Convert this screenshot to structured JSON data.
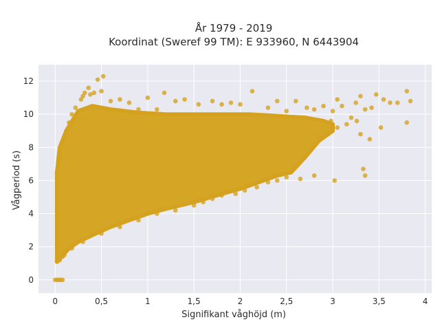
{
  "chart_data": {
    "type": "scatter",
    "title_lines": [
      "År 1979 - 2019",
      "Koordinat (Sweref 99 TM): E 933960, N 6443904"
    ],
    "xlabel": "Signifikant våghöjd (m)",
    "ylabel": "Vågperiod (s)",
    "xlim": [
      -0.18,
      4.07
    ],
    "ylim": [
      -0.8,
      13.0
    ],
    "x_ticks": [
      0,
      0.5,
      1,
      1.5,
      2,
      2.5,
      3,
      3.5,
      4
    ],
    "x_tick_labels": [
      "0",
      "0,5",
      "1",
      "1,5",
      "2",
      "2,5",
      "3",
      "3,5",
      "4"
    ],
    "y_ticks": [
      0,
      2,
      4,
      6,
      8,
      10,
      12
    ],
    "y_tick_labels": [
      "0",
      "2",
      "4",
      "6",
      "8",
      "10",
      "12"
    ],
    "grid": true,
    "background_color": "#e9e9f2",
    "marker_color": "#d4a21f",
    "description_of_dense_region": "tens of thousands of hourly observations forming a dense band",
    "points": [
      [
        0.0,
        0.0
      ],
      [
        0.02,
        0.0
      ],
      [
        0.04,
        0.0
      ],
      [
        0.06,
        0.0
      ],
      [
        0.08,
        0.0
      ],
      [
        0.02,
        1.1
      ],
      [
        0.05,
        1.2
      ],
      [
        0.08,
        1.4
      ],
      [
        0.1,
        1.5
      ],
      [
        0.02,
        6.5
      ],
      [
        0.04,
        7.3
      ],
      [
        0.05,
        8.0
      ],
      [
        0.1,
        8.6
      ],
      [
        0.12,
        9.0
      ],
      [
        0.15,
        9.5
      ],
      [
        0.18,
        10.0
      ],
      [
        0.22,
        10.4
      ],
      [
        0.28,
        10.9
      ],
      [
        0.3,
        11.1
      ],
      [
        0.32,
        11.3
      ],
      [
        0.36,
        11.6
      ],
      [
        0.38,
        11.2
      ],
      [
        0.42,
        11.3
      ],
      [
        0.46,
        12.1
      ],
      [
        0.52,
        12.3
      ],
      [
        0.5,
        11.4
      ],
      [
        0.6,
        10.8
      ],
      [
        0.7,
        10.9
      ],
      [
        0.8,
        10.7
      ],
      [
        0.9,
        10.3
      ],
      [
        1.0,
        11.0
      ],
      [
        1.1,
        10.3
      ],
      [
        1.18,
        11.3
      ],
      [
        1.3,
        10.8
      ],
      [
        1.4,
        10.9
      ],
      [
        1.55,
        10.6
      ],
      [
        1.7,
        10.8
      ],
      [
        1.8,
        10.6
      ],
      [
        1.9,
        10.7
      ],
      [
        2.0,
        10.6
      ],
      [
        2.13,
        11.4
      ],
      [
        2.3,
        10.4
      ],
      [
        2.4,
        10.8
      ],
      [
        2.5,
        10.2
      ],
      [
        2.6,
        10.8
      ],
      [
        2.72,
        10.4
      ],
      [
        2.8,
        10.3
      ],
      [
        2.9,
        10.5
      ],
      [
        3.0,
        10.2
      ],
      [
        3.05,
        10.9
      ],
      [
        3.1,
        10.5
      ],
      [
        3.25,
        10.7
      ],
      [
        3.3,
        11.1
      ],
      [
        3.35,
        10.3
      ],
      [
        3.42,
        10.4
      ],
      [
        3.47,
        11.2
      ],
      [
        3.55,
        10.9
      ],
      [
        3.62,
        10.7
      ],
      [
        3.7,
        10.7
      ],
      [
        3.8,
        11.4
      ],
      [
        3.84,
        10.8
      ],
      [
        3.8,
        9.5
      ],
      [
        3.52,
        9.2
      ],
      [
        3.4,
        8.5
      ],
      [
        3.3,
        8.8
      ],
      [
        3.15,
        9.4
      ],
      [
        3.05,
        9.2
      ],
      [
        2.95,
        8.8
      ],
      [
        2.85,
        8.7
      ],
      [
        2.98,
        9.6
      ],
      [
        3.2,
        9.8
      ],
      [
        3.26,
        9.6
      ],
      [
        3.33,
        6.7
      ],
      [
        3.35,
        6.3
      ],
      [
        3.02,
        6.0
      ],
      [
        2.8,
        6.3
      ],
      [
        2.65,
        6.1
      ],
      [
        2.5,
        6.2
      ],
      [
        2.4,
        6.0
      ],
      [
        2.3,
        5.9
      ],
      [
        2.18,
        5.6
      ],
      [
        2.05,
        5.4
      ],
      [
        1.95,
        5.2
      ],
      [
        1.8,
        5.1
      ],
      [
        1.7,
        4.9
      ],
      [
        1.6,
        4.7
      ],
      [
        1.5,
        4.5
      ],
      [
        1.3,
        4.2
      ],
      [
        1.1,
        4.0
      ],
      [
        0.9,
        3.6
      ],
      [
        0.7,
        3.2
      ],
      [
        0.5,
        2.8
      ],
      [
        0.3,
        2.3
      ],
      [
        0.18,
        1.9
      ]
    ],
    "density_band": {
      "upper": [
        [
          0.02,
          6.5
        ],
        [
          0.05,
          8.0
        ],
        [
          0.12,
          9.0
        ],
        [
          0.25,
          10.2
        ],
        [
          0.4,
          10.5
        ],
        [
          0.6,
          10.3
        ],
        [
          0.9,
          10.1
        ],
        [
          1.2,
          10.0
        ],
        [
          1.5,
          10.0
        ],
        [
          1.8,
          10.0
        ],
        [
          2.1,
          10.0
        ],
        [
          2.4,
          9.9
        ],
        [
          2.7,
          9.8
        ],
        [
          2.9,
          9.6
        ],
        [
          3.0,
          9.4
        ]
      ],
      "lower": [
        [
          3.0,
          9.0
        ],
        [
          2.85,
          8.4
        ],
        [
          2.7,
          7.4
        ],
        [
          2.55,
          6.5
        ],
        [
          2.4,
          6.3
        ],
        [
          2.2,
          5.9
        ],
        [
          2.0,
          5.5
        ],
        [
          1.8,
          5.2
        ],
        [
          1.5,
          4.7
        ],
        [
          1.2,
          4.3
        ],
        [
          1.0,
          4.0
        ],
        [
          0.8,
          3.6
        ],
        [
          0.6,
          3.2
        ],
        [
          0.4,
          2.7
        ],
        [
          0.25,
          2.3
        ],
        [
          0.15,
          1.9
        ],
        [
          0.08,
          1.5
        ],
        [
          0.02,
          1.1
        ]
      ]
    }
  }
}
